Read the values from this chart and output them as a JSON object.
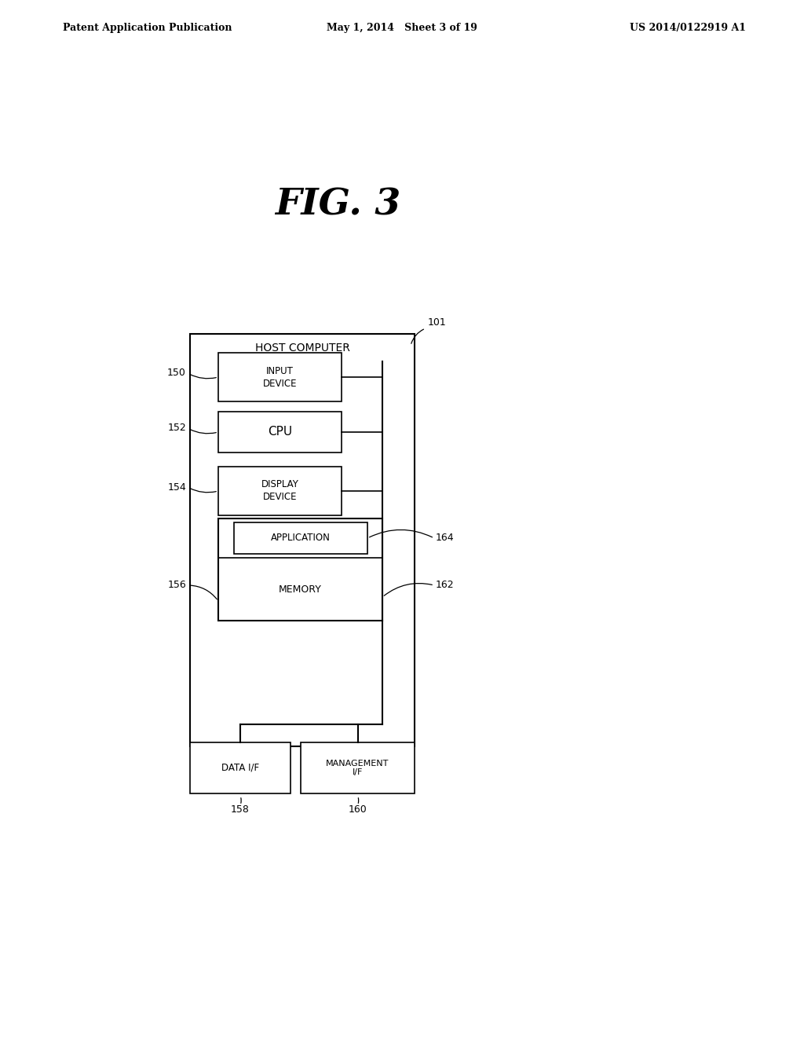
{
  "bg_color": "#ffffff",
  "header_left": "Patent Application Publication",
  "header_mid": "May 1, 2014   Sheet 3 of 19",
  "header_right": "US 2014/0122919 A1",
  "fig_title": "FIG. 3",
  "outer_box_label": "HOST COMPUTER",
  "outer_box_ref": "101",
  "app_label": "APPLICATION",
  "app_ref": "164",
  "memory_label": "MEMORY",
  "memory_group_ref": "156",
  "memory_group_inner_ref": "162",
  "input_label": "INPUT\nDEVICE",
  "input_ref": "150",
  "cpu_label": "CPU",
  "cpu_ref": "152",
  "display_label": "DISPLAY\nDEVICE",
  "display_ref": "154",
  "data_if_label": "DATA I/F",
  "data_if_ref": "158",
  "mgmt_if_label": "MANAGEMENT\nI/F",
  "mgmt_if_ref": "160"
}
